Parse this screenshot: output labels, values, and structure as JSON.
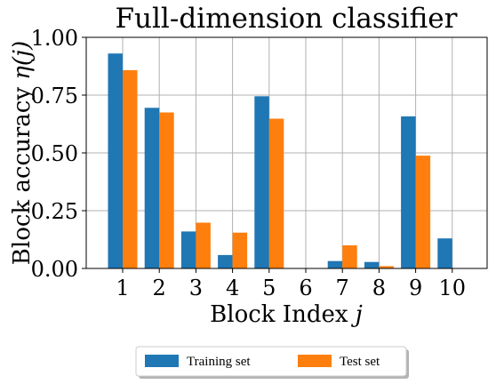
{
  "chart_data": {
    "type": "bar",
    "title": "Full-dimension classifier",
    "xlabel": "Block Index j",
    "xlabel_main": "Block Index ",
    "xlabel_var": "j",
    "ylabel": "Block accuracy η(j)",
    "ylabel_main": "Block accuracy ",
    "ylabel_var": "η(j)",
    "categories": [
      "1",
      "2",
      "3",
      "4",
      "5",
      "6",
      "7",
      "8",
      "9",
      "10"
    ],
    "ylim": [
      0,
      1.0
    ],
    "yticks": [
      "0.00",
      "0.25",
      "0.50",
      "0.75",
      "1.00"
    ],
    "grid": true,
    "legend_position": "bottom-center",
    "series": [
      {
        "name": "Training set",
        "color": "#1f77b4",
        "values": [
          0.93,
          0.695,
          0.16,
          0.058,
          0.745,
          0.0,
          0.032,
          0.028,
          0.658,
          0.13
        ]
      },
      {
        "name": "Test set",
        "color": "#ff7f0e",
        "values": [
          0.858,
          0.675,
          0.198,
          0.155,
          0.648,
          0.0,
          0.1,
          0.01,
          0.488,
          0.0
        ]
      }
    ]
  }
}
